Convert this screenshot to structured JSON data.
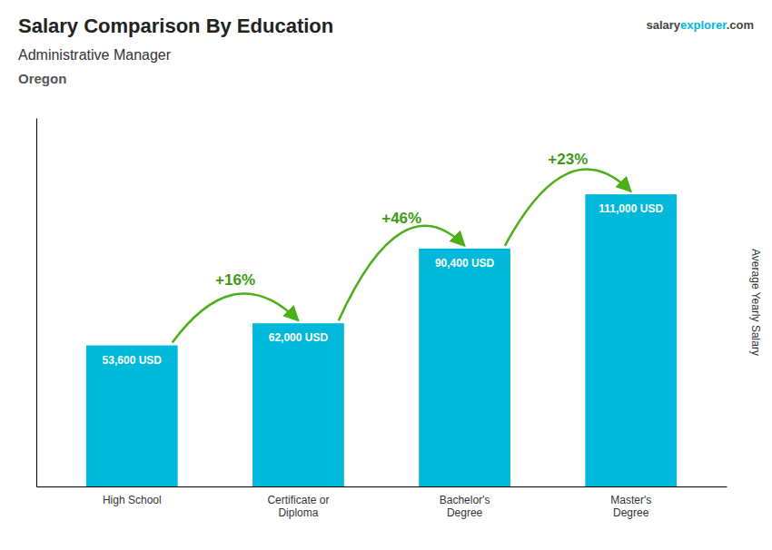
{
  "chart_data": {
    "type": "bar",
    "title": "Salary Comparison By Education",
    "subtitle": [
      "Administrative Manager",
      "Oregon"
    ],
    "source": [
      "salary",
      "explorer",
      ".com"
    ],
    "ylabel": "Average Yearly Salary",
    "categories": [
      "High School",
      "Certificate or\nDiploma",
      "Bachelor's\nDegree",
      "Master's\nDegree"
    ],
    "values": [
      53600,
      62000,
      90400,
      111000
    ],
    "value_labels": [
      "53,600 USD",
      "62,000 USD",
      "90,400 USD",
      "111,000 USD"
    ],
    "data_labels": true,
    "annotations": [
      "+16%",
      "+46%",
      "+23%"
    ],
    "color": "#00b8d9",
    "ylim": [
      0,
      140000
    ],
    "tick_labels": "x",
    "grid": false
  }
}
